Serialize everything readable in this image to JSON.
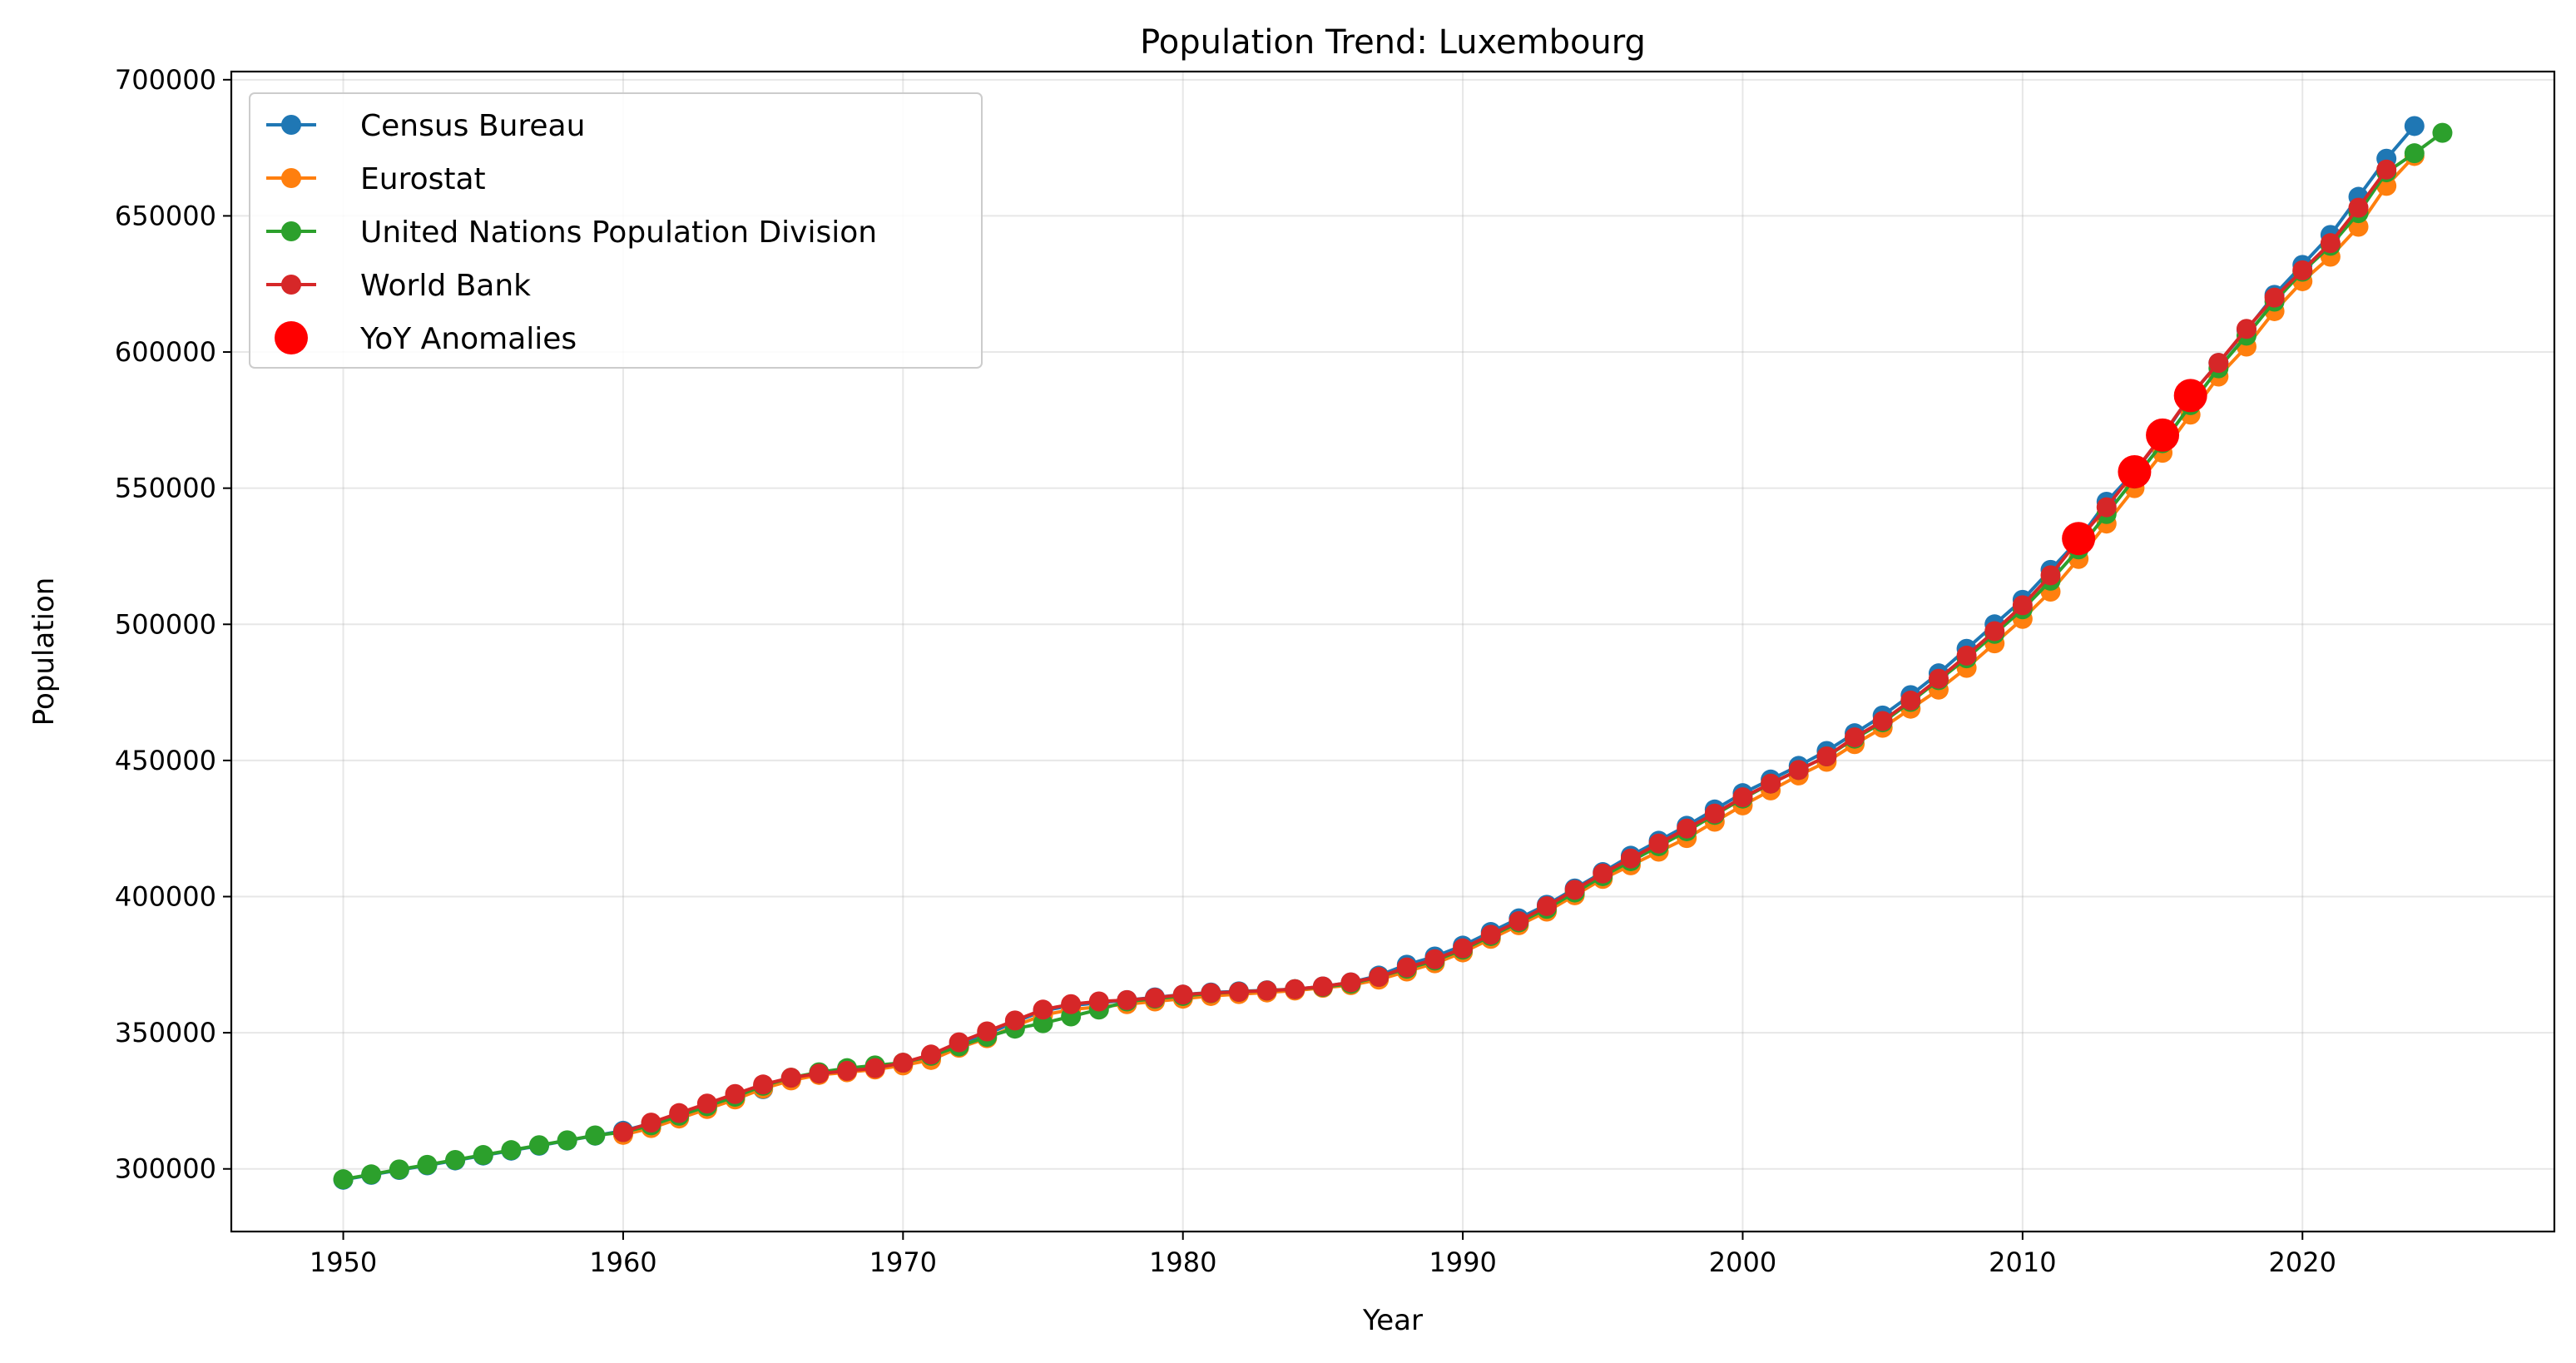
{
  "chart_data": {
    "type": "line",
    "title": "Population Trend: Luxembourg",
    "xlabel": "Year",
    "ylabel": "Population",
    "xlim": [
      1946,
      2029
    ],
    "ylim": [
      277000,
      703000
    ],
    "x_ticks": [
      1950,
      1960,
      1970,
      1980,
      1990,
      2000,
      2010,
      2020
    ],
    "y_ticks": [
      300000,
      350000,
      400000,
      450000,
      500000,
      550000,
      600000,
      650000,
      700000
    ],
    "grid": true,
    "legend_position": "top-left",
    "series": [
      {
        "name": "Census Bureau",
        "color": "#1f77b4",
        "x": [
          1950,
          1951,
          1952,
          1953,
          1954,
          1955,
          1956,
          1957,
          1958,
          1959,
          1960,
          1961,
          1962,
          1963,
          1964,
          1965,
          1966,
          1967,
          1968,
          1969,
          1970,
          1971,
          1972,
          1973,
          1974,
          1975,
          1976,
          1977,
          1978,
          1979,
          1980,
          1981,
          1982,
          1983,
          1984,
          1985,
          1986,
          1987,
          1988,
          1989,
          1990,
          1991,
          1992,
          1993,
          1994,
          1995,
          1996,
          1997,
          1998,
          1999,
          2000,
          2001,
          2002,
          2003,
          2004,
          2005,
          2006,
          2007,
          2008,
          2009,
          2010,
          2011,
          2012,
          2013,
          2014,
          2015,
          2016,
          2017,
          2018,
          2019,
          2020,
          2021,
          2022,
          2023,
          2024
        ],
        "y": [
          296000,
          297800,
          299600,
          301300,
          303100,
          304900,
          306700,
          308500,
          310400,
          312200,
          314000,
          316700,
          319800,
          322900,
          326100,
          329300,
          333000,
          335000,
          336500,
          337800,
          338500,
          341000,
          345500,
          349500,
          354000,
          358000,
          360000,
          361000,
          362000,
          363000,
          364000,
          364800,
          365200,
          365600,
          366000,
          367000,
          368500,
          371000,
          375000,
          378000,
          382000,
          387000,
          392000,
          397000,
          403000,
          409000,
          415000,
          420500,
          426000,
          432000,
          438000,
          443000,
          448000,
          453500,
          460000,
          466500,
          474000,
          482000,
          491000,
          500000,
          509000,
          520000,
          531000,
          545000,
          556000,
          569000,
          584000,
          596000,
          608000,
          621000,
          632000,
          643000,
          657000,
          671000,
          683000
        ]
      },
      {
        "name": "Eurostat",
        "color": "#ff7f0e",
        "x": [
          1960,
          1961,
          1962,
          1963,
          1964,
          1965,
          1966,
          1967,
          1968,
          1969,
          1970,
          1971,
          1972,
          1973,
          1974,
          1975,
          1976,
          1977,
          1978,
          1979,
          1980,
          1981,
          1982,
          1983,
          1984,
          1985,
          1986,
          1987,
          1988,
          1989,
          1990,
          1991,
          1992,
          1993,
          1994,
          1995,
          1996,
          1997,
          1998,
          1999,
          2000,
          2001,
          2002,
          2003,
          2004,
          2005,
          2006,
          2007,
          2008,
          2009,
          2010,
          2011,
          2012,
          2013,
          2014,
          2015,
          2016,
          2017,
          2018,
          2019,
          2020,
          2021,
          2022,
          2023,
          2024
        ],
        "y": [
          312500,
          315000,
          318500,
          322000,
          325500,
          329500,
          332500,
          334500,
          335500,
          336500,
          338000,
          340000,
          344500,
          348000,
          352500,
          356500,
          358500,
          359500,
          360500,
          361500,
          362500,
          363500,
          364200,
          364800,
          365500,
          366500,
          367500,
          369500,
          372500,
          375500,
          379500,
          384500,
          389500,
          394500,
          400500,
          406500,
          411500,
          416500,
          421500,
          427500,
          433500,
          439000,
          444500,
          449500,
          456000,
          462000,
          469000,
          476000,
          484000,
          493000,
          502000,
          512000,
          524000,
          537000,
          550000,
          563000,
          577000,
          591000,
          602000,
          615000,
          626000,
          635000,
          646000,
          661000,
          672000
        ]
      },
      {
        "name": "United Nations Population Division",
        "color": "#2ca02c",
        "x": [
          1950,
          1951,
          1952,
          1953,
          1954,
          1955,
          1956,
          1957,
          1958,
          1959,
          1960,
          1961,
          1962,
          1963,
          1964,
          1965,
          1966,
          1967,
          1968,
          1969,
          1970,
          1971,
          1972,
          1973,
          1974,
          1975,
          1976,
          1977,
          1978,
          1979,
          1980,
          1981,
          1982,
          1983,
          1984,
          1985,
          1986,
          1987,
          1988,
          1989,
          1990,
          1991,
          1992,
          1993,
          1994,
          1995,
          1996,
          1997,
          1998,
          1999,
          2000,
          2001,
          2002,
          2003,
          2004,
          2005,
          2006,
          2007,
          2008,
          2009,
          2010,
          2011,
          2012,
          2013,
          2014,
          2015,
          2016,
          2017,
          2018,
          2019,
          2020,
          2021,
          2022,
          2023,
          2024,
          2025
        ],
        "y": [
          296200,
          298000,
          299800,
          301500,
          303300,
          305100,
          306900,
          308700,
          310500,
          312300,
          313500,
          316000,
          319500,
          323000,
          326500,
          330500,
          333500,
          335500,
          337000,
          338000,
          339000,
          341500,
          345000,
          348500,
          351500,
          353500,
          356000,
          358500,
          361500,
          362500,
          363500,
          364500,
          365000,
          365500,
          366000,
          366800,
          368000,
          370500,
          373500,
          376500,
          380500,
          385500,
          390500,
          395500,
          401500,
          407500,
          413000,
          418500,
          424000,
          430000,
          436000,
          441500,
          446500,
          451500,
          458000,
          464000,
          471500,
          479500,
          487500,
          496500,
          505500,
          516000,
          527500,
          540500,
          553500,
          566500,
          580500,
          594000,
          606000,
          618500,
          629500,
          639000,
          651000,
          666000,
          673000,
          680500
        ]
      },
      {
        "name": "World Bank",
        "color": "#d62728",
        "x": [
          1960,
          1961,
          1962,
          1963,
          1964,
          1965,
          1966,
          1967,
          1968,
          1969,
          1970,
          1971,
          1972,
          1973,
          1974,
          1975,
          1976,
          1977,
          1978,
          1979,
          1980,
          1981,
          1982,
          1983,
          1984,
          1985,
          1986,
          1987,
          1988,
          1989,
          1990,
          1991,
          1992,
          1993,
          1994,
          1995,
          1996,
          1997,
          1998,
          1999,
          2000,
          2001,
          2002,
          2003,
          2004,
          2005,
          2006,
          2007,
          2008,
          2009,
          2010,
          2011,
          2012,
          2013,
          2014,
          2015,
          2016,
          2017,
          2018,
          2019,
          2020,
          2021,
          2022,
          2023
        ],
        "y": [
          313500,
          317000,
          320500,
          324000,
          327500,
          331000,
          333500,
          335000,
          336000,
          337000,
          339000,
          342000,
          346500,
          350500,
          354500,
          358500,
          360500,
          361500,
          362000,
          362800,
          364000,
          364600,
          365000,
          365500,
          366000,
          367000,
          368500,
          370500,
          374000,
          377000,
          381000,
          386000,
          391000,
          396500,
          402500,
          408500,
          414000,
          419500,
          425000,
          430500,
          436500,
          441500,
          446500,
          451500,
          458500,
          464500,
          472000,
          480000,
          488500,
          497500,
          507000,
          518000,
          531000,
          543000,
          556000,
          569500,
          584000,
          596000,
          608500,
          620000,
          630000,
          640000,
          653000,
          667000
        ]
      },
      {
        "name": "YoY Anomalies",
        "color": "#ff0000",
        "x": [
          2012,
          2014,
          2015,
          2016
        ],
        "y": [
          531500,
          556000,
          569500,
          584000
        ]
      }
    ]
  }
}
